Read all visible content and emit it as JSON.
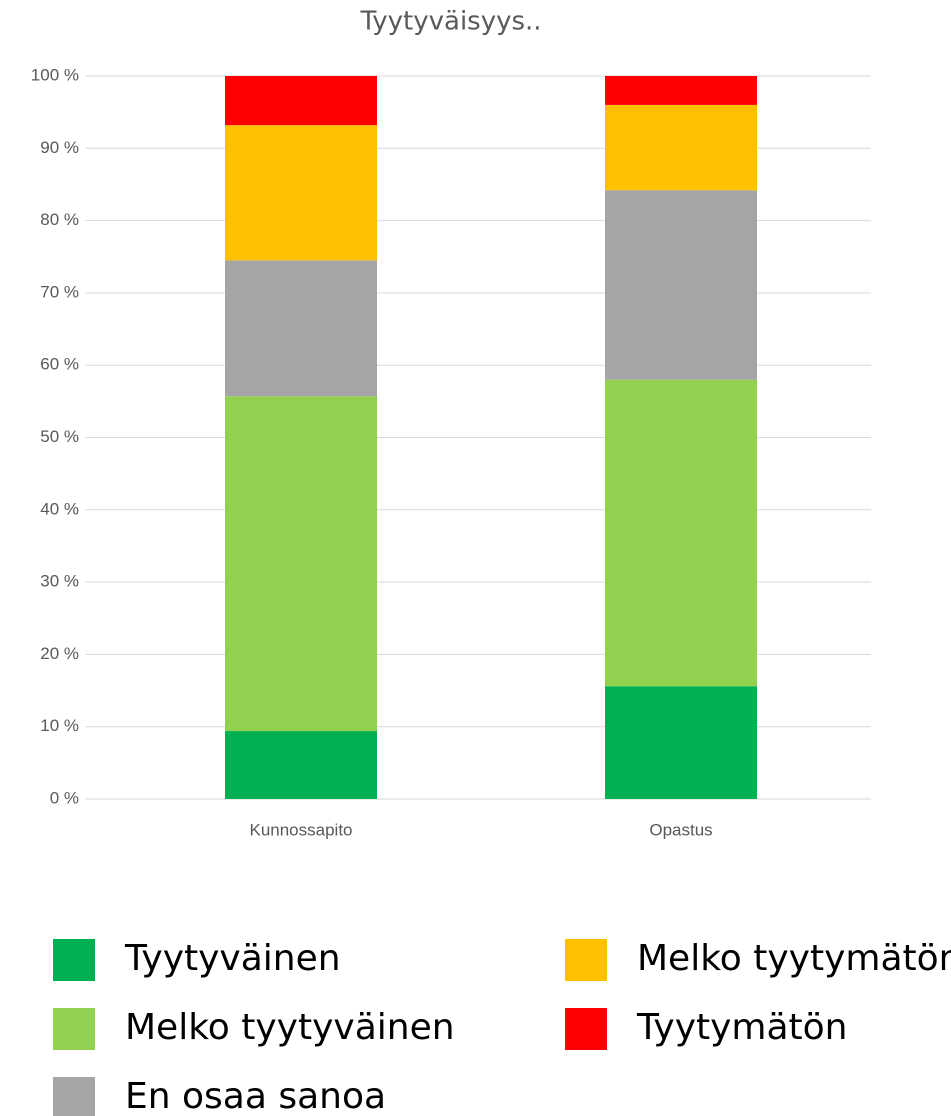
{
  "chart_data": {
    "type": "bar",
    "stacked": true,
    "title": "Tyytyväisyys..",
    "categories": [
      "Kunnossapito",
      "Opastus"
    ],
    "series": [
      {
        "name": "Tyytyväinen",
        "color": "#00b050",
        "values": [
          9.4,
          15.6
        ]
      },
      {
        "name": "Melko tyytyväinen",
        "color": "#92d050",
        "values": [
          46.3,
          42.4
        ]
      },
      {
        "name": "En osaa sanoa",
        "color": "#a5a5a5",
        "values": [
          18.8,
          26.2
        ]
      },
      {
        "name": "Melko tyytymätön",
        "color": "#ffc000",
        "values": [
          18.7,
          11.8
        ]
      },
      {
        "name": "Tyytymätön",
        "color": "#ff0000",
        "values": [
          6.8,
          4.0
        ]
      }
    ],
    "ylim": [
      0,
      100
    ],
    "yticks": [
      {
        "value": 0,
        "label": "0 %"
      },
      {
        "value": 10,
        "label": "10 %"
      },
      {
        "value": 20,
        "label": "20 %"
      },
      {
        "value": 30,
        "label": "30 %"
      },
      {
        "value": 40,
        "label": "40 %"
      },
      {
        "value": 50,
        "label": "50 %"
      },
      {
        "value": 60,
        "label": "60 %"
      },
      {
        "value": 70,
        "label": "70 %"
      },
      {
        "value": 80,
        "label": "80 %"
      },
      {
        "value": 90,
        "label": "90 %"
      },
      {
        "value": 100,
        "label": "100 %"
      }
    ],
    "grid": true,
    "legend": "bottom"
  }
}
